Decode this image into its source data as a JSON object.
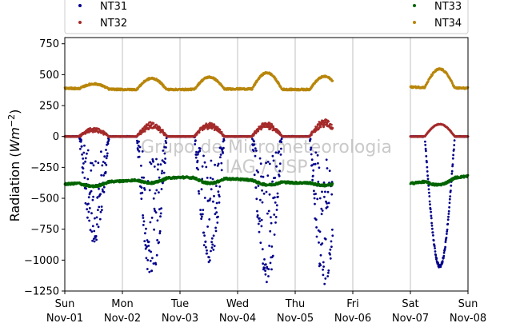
{
  "chart_data": {
    "type": "scatter",
    "ylabel": "Radiation (Wm⁻²)",
    "ylabel_plain": "Radiation (",
    "ylabel_unit_base": "Wm",
    "ylabel_unit_exp": "−2",
    "ylabel_close": ")",
    "ylim": [
      -1250,
      800
    ],
    "xlim_days": [
      0,
      7
    ],
    "grid": "vertical",
    "legend_position": "top",
    "watermark": [
      "Grupo de Micrometeorologia",
      "IAG / USP"
    ],
    "yticks": [
      {
        "value": 750,
        "label": "750"
      },
      {
        "value": 500,
        "label": "500"
      },
      {
        "value": 250,
        "label": "250"
      },
      {
        "value": 0,
        "label": "0"
      },
      {
        "value": -250,
        "label": "−250"
      },
      {
        "value": -500,
        "label": "−500"
      },
      {
        "value": -750,
        "label": "−750"
      },
      {
        "value": -1000,
        "label": "−1000"
      },
      {
        "value": -1250,
        "label": "−1250"
      }
    ],
    "xticks": [
      {
        "day": 0,
        "line1": "Sun",
        "line2": "Nov-01"
      },
      {
        "day": 1,
        "line1": "Mon",
        "line2": "Nov-02"
      },
      {
        "day": 2,
        "line1": "Tue",
        "line2": "Nov-03"
      },
      {
        "day": 3,
        "line1": "Wed",
        "line2": "Nov-04"
      },
      {
        "day": 4,
        "line1": "Thu",
        "line2": "Nov-05"
      },
      {
        "day": 5,
        "line1": "Fri",
        "line2": "Nov-06"
      },
      {
        "day": 6,
        "line1": "Sat",
        "line2": "Nov-07"
      },
      {
        "day": 7,
        "line1": "Sun",
        "line2": "Nov-08"
      }
    ],
    "series": [
      {
        "name": "NT31",
        "color": "#00008b",
        "segments": [
          [
            0,
            4.65
          ],
          [
            6.0,
            7.0
          ]
        ],
        "night_level": 0,
        "day_minima": [
          -880,
          -1200,
          -1070,
          -1230,
          -1240,
          null,
          -1050
        ]
      },
      {
        "name": "NT32",
        "color": "#a52a2a",
        "segments": [
          [
            0,
            4.65
          ],
          [
            6.0,
            7.0
          ]
        ],
        "night_level": 0,
        "day_maxima": [
          70,
          115,
          110,
          120,
          140,
          null,
          100
        ]
      },
      {
        "name": "NT33",
        "color": "#006400",
        "segments": [
          [
            0,
            4.65
          ],
          [
            6.0,
            7.0
          ]
        ],
        "baseline": [
          -385,
          -360,
          -330,
          -345,
          -375,
          null,
          -380,
          -320
        ],
        "day_dip": [
          -30,
          -30,
          -40,
          -30,
          -20,
          null,
          -40
        ]
      },
      {
        "name": "NT34",
        "color": "#b8860b",
        "segments": [
          [
            0,
            4.65
          ],
          [
            6.0,
            7.0
          ]
        ],
        "baseline": [
          390,
          380,
          380,
          385,
          380,
          null,
          400,
          390
        ],
        "day_peak": [
          425,
          470,
          480,
          515,
          485,
          null,
          545
        ]
      }
    ]
  }
}
